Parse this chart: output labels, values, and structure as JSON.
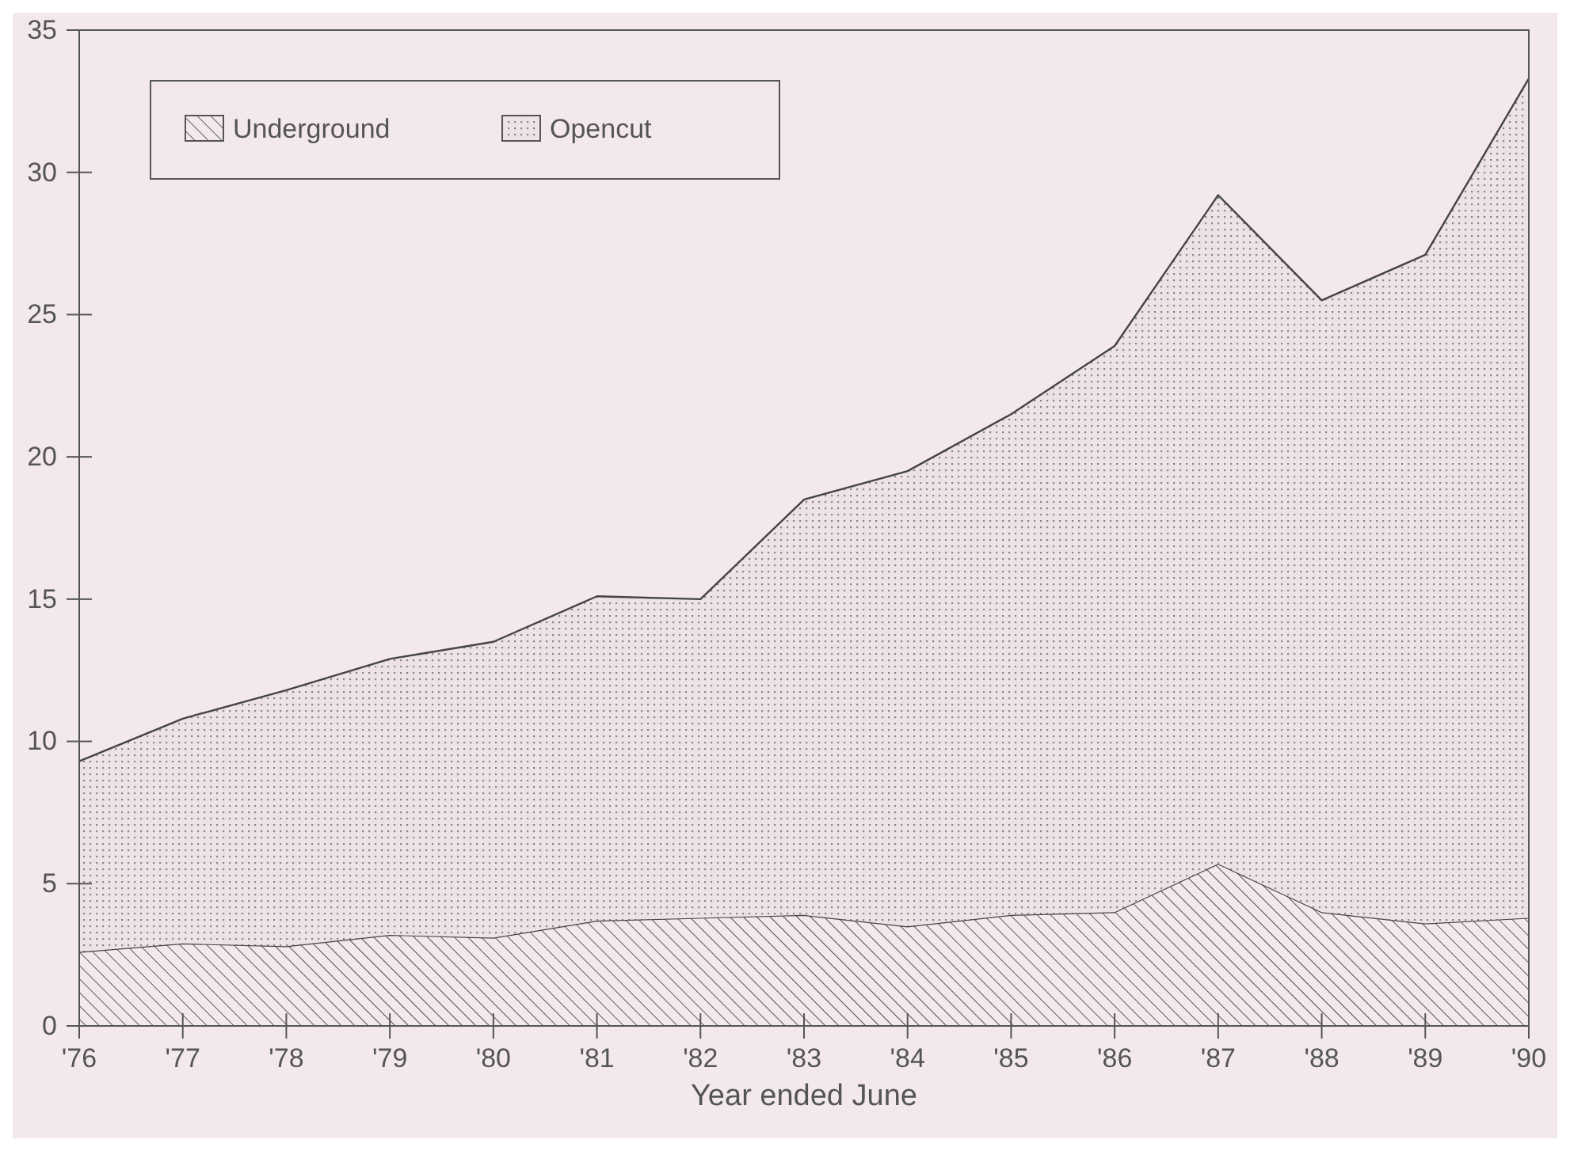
{
  "chart_data": {
    "type": "area",
    "stacked": true,
    "xlabel": "Year ended June",
    "categories": [
      "'76",
      "'77",
      "'78",
      "'79",
      "'80",
      "'81",
      "'82",
      "'83",
      "'84",
      "'85",
      "'86",
      "'87",
      "'88",
      "'89",
      "'90"
    ],
    "series": [
      {
        "name": "Underground",
        "color": "#555555",
        "values": [
          2.6,
          2.9,
          2.8,
          3.2,
          3.1,
          3.7,
          3.8,
          3.9,
          3.5,
          3.9,
          4.0,
          5.7,
          4.0,
          3.6,
          3.8
        ]
      },
      {
        "name": "Opencut",
        "color": "#888888",
        "values": [
          6.7,
          7.9,
          9.0,
          9.7,
          10.4,
          11.4,
          11.2,
          14.6,
          16.0,
          17.6,
          19.9,
          23.5,
          21.5,
          23.5,
          29.5
        ]
      }
    ],
    "ylim": [
      0,
      35
    ],
    "yticks": [
      0,
      5,
      10,
      15,
      20,
      25,
      30,
      35
    ],
    "grid": false,
    "legend": "top left"
  }
}
